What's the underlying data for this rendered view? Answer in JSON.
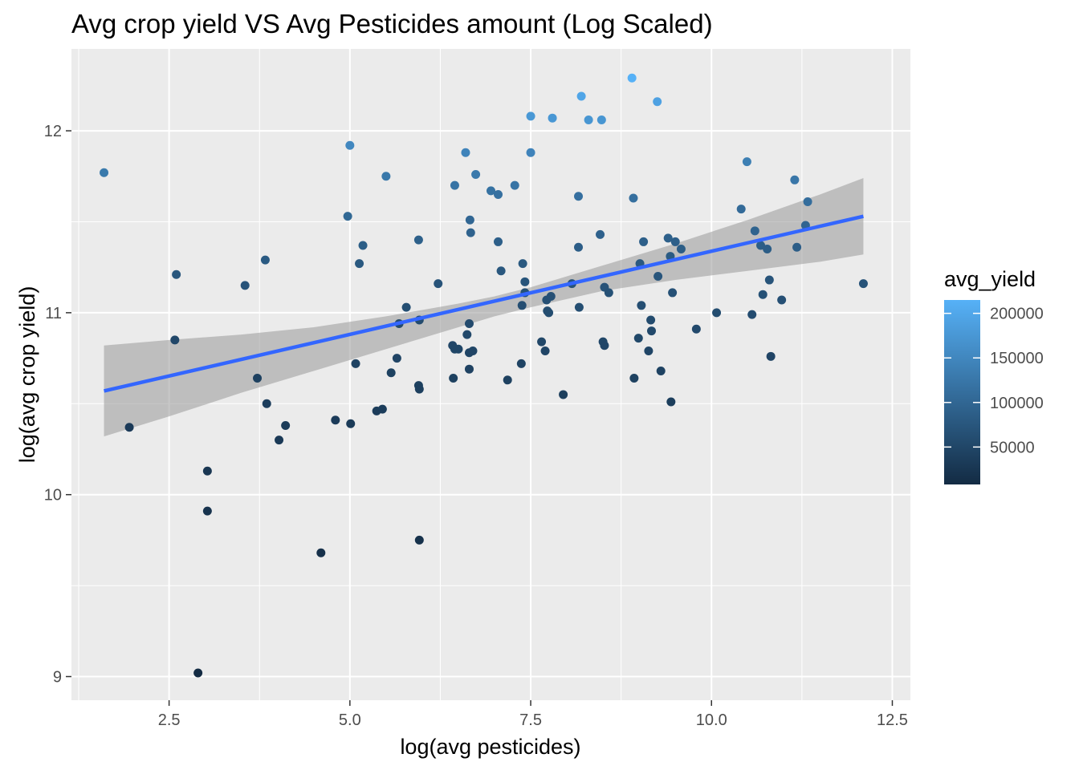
{
  "chart_data": {
    "type": "scatter",
    "title": "Avg crop yield VS Avg Pesticides amount (Log Scaled)",
    "xlabel": "log(avg pesticides)",
    "ylabel": "log(avg crop yield)",
    "xlim": [
      1.15,
      12.75
    ],
    "ylim": [
      8.87,
      12.45
    ],
    "x_ticks": [
      2.5,
      5.0,
      7.5,
      10.0,
      12.5
    ],
    "x_tick_labels": [
      "2.5",
      "5.0",
      "7.5",
      "10.0",
      "12.5"
    ],
    "y_ticks": [
      9,
      10,
      11,
      12
    ],
    "y_tick_labels": [
      "9",
      "10",
      "11",
      "12"
    ],
    "grid": true,
    "color_legend": {
      "title": "avg_yield",
      "position": "right",
      "min": 8000,
      "max": 215000,
      "low_color": "#132B43",
      "high_color": "#56B1F7",
      "breaks": [
        200000,
        150000,
        100000,
        50000
      ],
      "break_labels": [
        "200000",
        "150000",
        "100000",
        "50000"
      ]
    },
    "trend_line": {
      "color": "#3366FF",
      "x": [
        1.6,
        12.1
      ],
      "y": [
        10.57,
        11.53
      ]
    },
    "confidence_band": {
      "fill": "#999999",
      "x": [
        1.6,
        2.5,
        3.5,
        4.5,
        5.5,
        6.5,
        7.0,
        7.5,
        8.5,
        9.5,
        10.5,
        11.5,
        12.1
      ],
      "upper": [
        10.82,
        10.85,
        10.88,
        10.92,
        10.98,
        11.05,
        11.09,
        11.14,
        11.26,
        11.38,
        11.51,
        11.65,
        11.74
      ],
      "lower": [
        10.32,
        10.43,
        10.56,
        10.68,
        10.8,
        10.92,
        10.98,
        11.03,
        11.12,
        11.18,
        11.23,
        11.28,
        11.32
      ]
    },
    "points": [
      {
        "x": 1.6,
        "y": 11.77
      },
      {
        "x": 1.95,
        "y": 10.37
      },
      {
        "x": 2.6,
        "y": 11.21
      },
      {
        "x": 2.58,
        "y": 10.85
      },
      {
        "x": 2.9,
        "y": 9.02
      },
      {
        "x": 3.03,
        "y": 10.13
      },
      {
        "x": 3.03,
        "y": 9.91
      },
      {
        "x": 3.55,
        "y": 11.15
      },
      {
        "x": 3.72,
        "y": 10.64
      },
      {
        "x": 3.83,
        "y": 11.29
      },
      {
        "x": 3.85,
        "y": 10.5
      },
      {
        "x": 4.02,
        "y": 10.3
      },
      {
        "x": 4.11,
        "y": 10.38
      },
      {
        "x": 4.6,
        "y": 9.68
      },
      {
        "x": 4.8,
        "y": 10.41
      },
      {
        "x": 4.97,
        "y": 11.53
      },
      {
        "x": 5.0,
        "y": 11.92
      },
      {
        "x": 5.01,
        "y": 10.39
      },
      {
        "x": 5.08,
        "y": 10.72
      },
      {
        "x": 5.13,
        "y": 11.27
      },
      {
        "x": 5.18,
        "y": 11.37
      },
      {
        "x": 5.37,
        "y": 10.46
      },
      {
        "x": 5.45,
        "y": 10.47
      },
      {
        "x": 5.5,
        "y": 11.75
      },
      {
        "x": 5.57,
        "y": 10.67
      },
      {
        "x": 5.65,
        "y": 10.75
      },
      {
        "x": 5.68,
        "y": 10.94
      },
      {
        "x": 5.78,
        "y": 11.03
      },
      {
        "x": 5.95,
        "y": 11.4
      },
      {
        "x": 5.95,
        "y": 10.6
      },
      {
        "x": 5.96,
        "y": 10.96
      },
      {
        "x": 5.96,
        "y": 10.58
      },
      {
        "x": 5.96,
        "y": 9.75
      },
      {
        "x": 6.22,
        "y": 11.16
      },
      {
        "x": 6.42,
        "y": 10.82
      },
      {
        "x": 6.43,
        "y": 10.64
      },
      {
        "x": 6.45,
        "y": 10.8
      },
      {
        "x": 6.45,
        "y": 11.7
      },
      {
        "x": 6.5,
        "y": 10.8
      },
      {
        "x": 6.6,
        "y": 11.88
      },
      {
        "x": 6.62,
        "y": 10.88
      },
      {
        "x": 6.65,
        "y": 10.94
      },
      {
        "x": 6.65,
        "y": 10.69
      },
      {
        "x": 6.65,
        "y": 10.78
      },
      {
        "x": 6.66,
        "y": 11.51
      },
      {
        "x": 6.67,
        "y": 11.44
      },
      {
        "x": 6.7,
        "y": 10.79
      },
      {
        "x": 6.74,
        "y": 11.76
      },
      {
        "x": 6.95,
        "y": 11.67
      },
      {
        "x": 7.05,
        "y": 11.65
      },
      {
        "x": 7.05,
        "y": 11.39
      },
      {
        "x": 7.09,
        "y": 11.23
      },
      {
        "x": 7.18,
        "y": 10.63
      },
      {
        "x": 7.28,
        "y": 11.7
      },
      {
        "x": 7.37,
        "y": 10.72
      },
      {
        "x": 7.38,
        "y": 11.04
      },
      {
        "x": 7.39,
        "y": 11.27
      },
      {
        "x": 7.42,
        "y": 11.17
      },
      {
        "x": 7.42,
        "y": 11.11
      },
      {
        "x": 7.5,
        "y": 12.08
      },
      {
        "x": 7.5,
        "y": 11.88
      },
      {
        "x": 7.65,
        "y": 10.84
      },
      {
        "x": 7.7,
        "y": 10.79
      },
      {
        "x": 7.72,
        "y": 11.07
      },
      {
        "x": 7.73,
        "y": 11.01
      },
      {
        "x": 7.75,
        "y": 11.0
      },
      {
        "x": 7.78,
        "y": 11.09
      },
      {
        "x": 7.8,
        "y": 12.07
      },
      {
        "x": 7.95,
        "y": 10.55
      },
      {
        "x": 8.07,
        "y": 11.16
      },
      {
        "x": 8.16,
        "y": 11.36
      },
      {
        "x": 8.16,
        "y": 11.64
      },
      {
        "x": 8.17,
        "y": 11.03
      },
      {
        "x": 8.2,
        "y": 12.19
      },
      {
        "x": 8.3,
        "y": 12.06
      },
      {
        "x": 8.46,
        "y": 11.43
      },
      {
        "x": 8.48,
        "y": 12.06
      },
      {
        "x": 8.5,
        "y": 10.84
      },
      {
        "x": 8.52,
        "y": 10.82
      },
      {
        "x": 8.52,
        "y": 11.14
      },
      {
        "x": 8.58,
        "y": 11.11
      },
      {
        "x": 8.9,
        "y": 12.29
      },
      {
        "x": 8.92,
        "y": 11.63
      },
      {
        "x": 8.93,
        "y": 10.64
      },
      {
        "x": 8.99,
        "y": 10.86
      },
      {
        "x": 9.01,
        "y": 11.27
      },
      {
        "x": 9.03,
        "y": 11.04
      },
      {
        "x": 9.06,
        "y": 11.39
      },
      {
        "x": 9.13,
        "y": 10.79
      },
      {
        "x": 9.16,
        "y": 10.96
      },
      {
        "x": 9.17,
        "y": 10.9
      },
      {
        "x": 9.25,
        "y": 12.16
      },
      {
        "x": 9.26,
        "y": 11.2
      },
      {
        "x": 9.3,
        "y": 10.68
      },
      {
        "x": 9.4,
        "y": 11.41
      },
      {
        "x": 9.43,
        "y": 11.31
      },
      {
        "x": 9.44,
        "y": 10.51
      },
      {
        "x": 9.46,
        "y": 11.11
      },
      {
        "x": 9.5,
        "y": 11.39
      },
      {
        "x": 9.58,
        "y": 11.35
      },
      {
        "x": 9.79,
        "y": 10.91
      },
      {
        "x": 10.07,
        "y": 11.0
      },
      {
        "x": 10.41,
        "y": 11.57
      },
      {
        "x": 10.49,
        "y": 11.83
      },
      {
        "x": 10.56,
        "y": 10.99
      },
      {
        "x": 10.6,
        "y": 11.45
      },
      {
        "x": 10.68,
        "y": 11.37
      },
      {
        "x": 10.71,
        "y": 11.1
      },
      {
        "x": 10.77,
        "y": 11.35
      },
      {
        "x": 10.8,
        "y": 11.18
      },
      {
        "x": 10.82,
        "y": 10.76
      },
      {
        "x": 10.97,
        "y": 11.07
      },
      {
        "x": 11.15,
        "y": 11.73
      },
      {
        "x": 11.18,
        "y": 11.36
      },
      {
        "x": 11.3,
        "y": 11.48
      },
      {
        "x": 11.33,
        "y": 11.61
      },
      {
        "x": 12.1,
        "y": 11.16
      }
    ]
  }
}
